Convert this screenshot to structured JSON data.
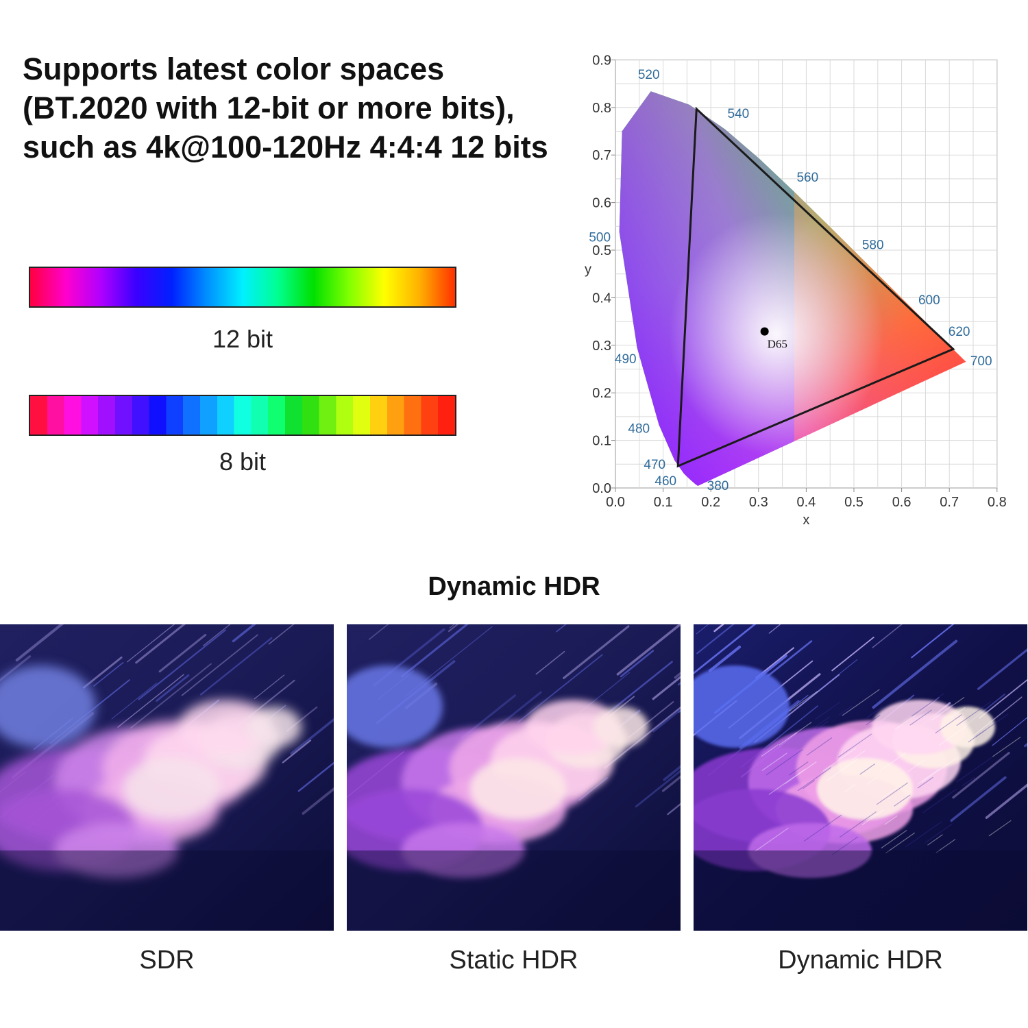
{
  "headline": "Supports latest color spaces (BT.2020 with 12-bit or more bits), such as 4k@100-120Hz 4:4:4 12 bits",
  "gradients": {
    "smooth_label": "12 bit",
    "banded_label": "8 bit"
  },
  "cie_diagram": {
    "x_axis_label": "x",
    "y_axis_label": "y",
    "x_ticks": [
      "0.0",
      "0.1",
      "0.2",
      "0.3",
      "0.4",
      "0.5",
      "0.6",
      "0.7",
      "0.8"
    ],
    "y_ticks": [
      "0.0",
      "0.1",
      "0.2",
      "0.3",
      "0.4",
      "0.5",
      "0.6",
      "0.7",
      "0.8",
      "0.9"
    ],
    "wavelength_labels": [
      "520",
      "540",
      "560",
      "580",
      "600",
      "620",
      "700",
      "500",
      "490",
      "480",
      "470",
      "460",
      "380"
    ],
    "white_point_label": "D65",
    "white_point": [
      0.3127,
      0.329
    ],
    "gamut_triangle": [
      [
        0.708,
        0.292
      ],
      [
        0.17,
        0.797
      ],
      [
        0.131,
        0.046
      ]
    ]
  },
  "section_title": "Dynamic HDR",
  "panels": [
    {
      "caption": "SDR"
    },
    {
      "caption": "Static HDR"
    },
    {
      "caption": "Dynamic HDR"
    }
  ],
  "colors": {
    "label_blue": "#2f6b9a",
    "night_sky": "#14164a",
    "cloud_pink": "#f2a9e8",
    "cloud_purple": "#a54bd6"
  }
}
